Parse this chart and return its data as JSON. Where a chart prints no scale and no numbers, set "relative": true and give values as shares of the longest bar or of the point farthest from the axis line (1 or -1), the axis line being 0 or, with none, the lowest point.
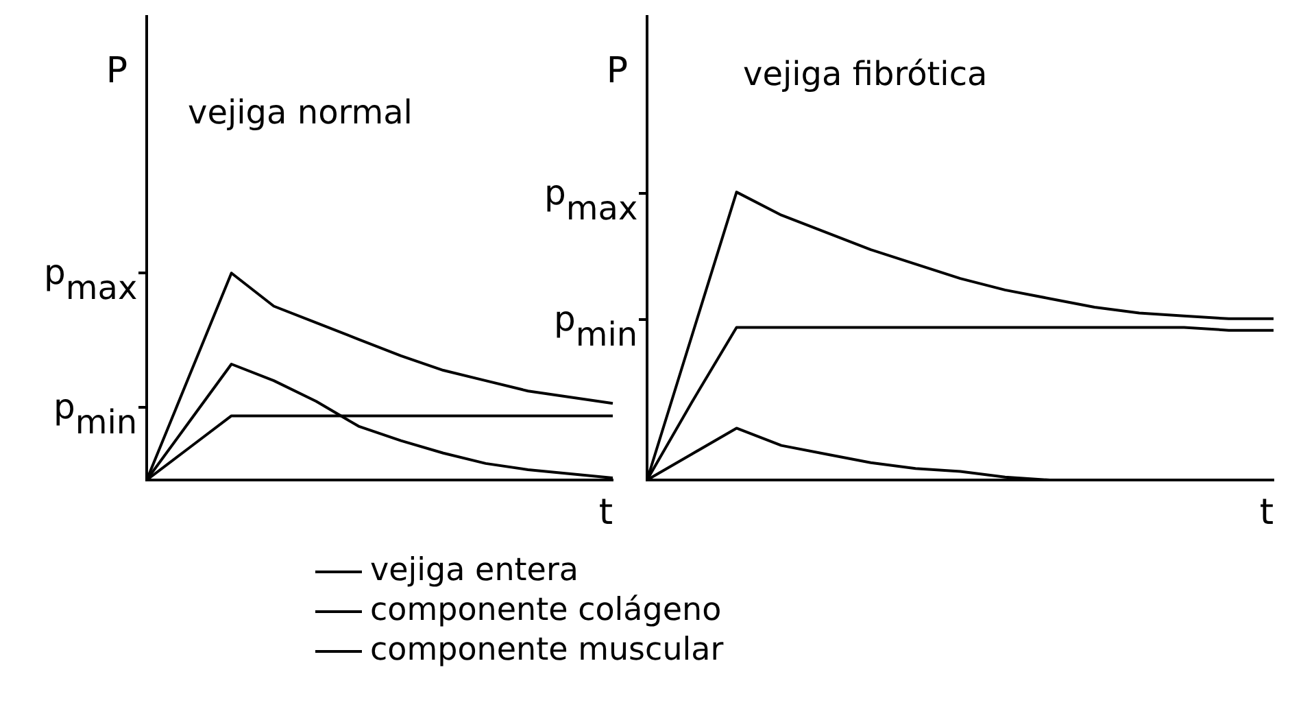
{
  "chart_data": [
    {
      "type": "line",
      "title": "vejiga normal",
      "ylabel": "P",
      "xlabel": "t",
      "relative": true,
      "legend": "bottom",
      "marker": "none",
      "grid": false,
      "categories": [
        null,
        null,
        null,
        null,
        null,
        null,
        null,
        null,
        null,
        null,
        null,
        null
      ],
      "series": [
        {
          "name": "vejiga entera",
          "color": "#000000",
          "values": [
            0,
            0.5,
            1,
            0.84,
            0.76,
            0.68,
            0.6,
            0.53,
            0.48,
            0.43,
            0.4,
            0.37
          ]
        },
        {
          "name": "componente colágeno",
          "color": "#000000",
          "values": [
            0,
            0.155,
            0.31,
            0.31,
            0.31,
            0.31,
            0.31,
            0.31,
            0.31,
            0.31,
            0.31,
            0.31
          ]
        },
        {
          "name": "componente muscular",
          "color": "#000000",
          "values": [
            0,
            0.28,
            0.56,
            0.48,
            0.38,
            0.26,
            0.19,
            0.13,
            0.08,
            0.05,
            0.03,
            0.01
          ]
        }
      ],
      "annotations": [
        "p$_{max}$",
        "p$_{min}$"
      ]
    },
    {
      "type": "line",
      "title": "vejiga fibrótica",
      "ylabel": "P",
      "xlabel": "t",
      "relative": true,
      "marker": "none",
      "grid": false,
      "categories": [
        null,
        null,
        null,
        null,
        null,
        null,
        null,
        null,
        null,
        null,
        null,
        null,
        null,
        null,
        null
      ],
      "series": [
        {
          "color": "#000000",
          "values": [
            0,
            0.5,
            1,
            0.92,
            0.86,
            0.8,
            0.75,
            0.7,
            0.66,
            0.63,
            0.6,
            0.58,
            0.57,
            0.56,
            0.56
          ]
        },
        {
          "color": "#000000",
          "values": [
            0,
            0.27,
            0.53,
            0.53,
            0.53,
            0.53,
            0.53,
            0.53,
            0.53,
            0.53,
            0.53,
            0.53,
            0.53,
            0.52,
            0.52
          ]
        },
        {
          "color": "#000000",
          "values": [
            0,
            0.09,
            0.18,
            0.12,
            0.09,
            0.06,
            0.04,
            0.03,
            0.01,
            0,
            0,
            0,
            0,
            0,
            0
          ]
        }
      ],
      "annotations": [
        "p$_{max}$",
        "p$_{min}$"
      ]
    }
  ]
}
